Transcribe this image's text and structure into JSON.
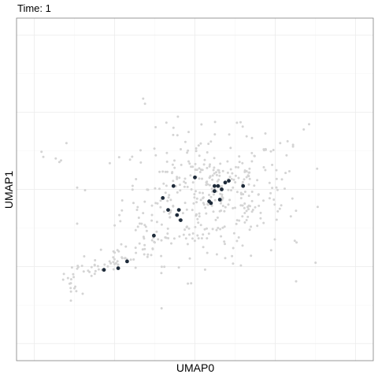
{
  "chart_data": {
    "type": "scatter",
    "title": "Time: 1",
    "xlabel": "UMAP0",
    "ylabel": "UMAP1",
    "xlim": [
      -5,
      5
    ],
    "ylim": [
      -5,
      5
    ],
    "x_ticks": [
      -4.5,
      -2.25,
      0,
      2.25,
      4.5
    ],
    "y_ticks": [
      -4.5,
      -2.25,
      0,
      2.25,
      4.5
    ],
    "grid": true,
    "legend": "none",
    "colors": {
      "background": "#d4d4d4",
      "highlight": "#1e2b3a",
      "grid": "#ebebeb",
      "border": "#7f7f7f"
    },
    "highlighted_points": {
      "x": [
        -2.55,
        -2.15,
        -1.9,
        -1.15,
        -0.9,
        -0.75,
        -0.6,
        -0.5,
        -0.45,
        -0.4,
        0.0,
        0.4,
        0.45,
        0.55,
        0.55,
        0.65,
        0.7,
        0.75,
        0.85,
        0.95,
        1.35
      ],
      "y": [
        -2.35,
        -2.3,
        -2.1,
        -1.35,
        -0.25,
        -0.6,
        0.1,
        -0.75,
        -0.6,
        -0.9,
        0.35,
        -0.35,
        -0.4,
        0.1,
        -0.05,
        0.1,
        -0.3,
        0.0,
        0.2,
        0.25,
        0.1
      ]
    }
  }
}
